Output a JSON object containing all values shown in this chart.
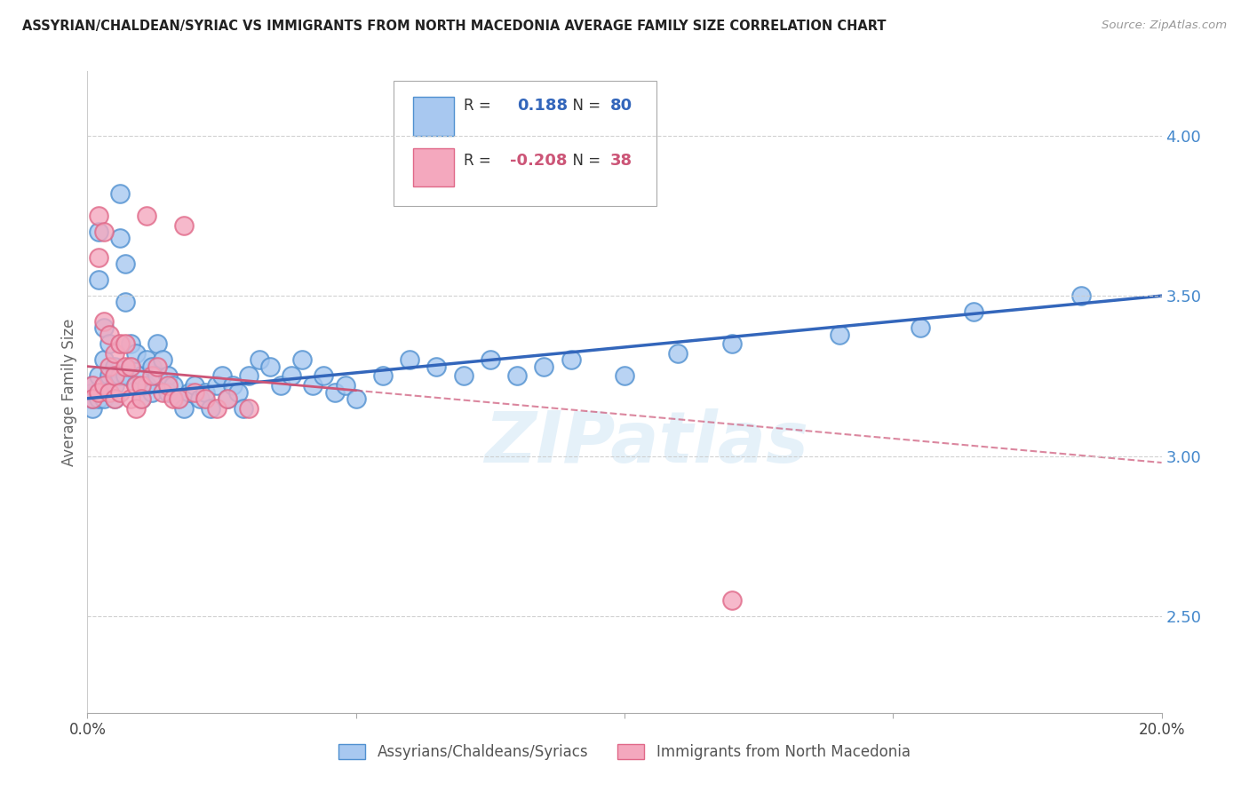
{
  "title": "ASSYRIAN/CHALDEAN/SYRIAC VS IMMIGRANTS FROM NORTH MACEDONIA AVERAGE FAMILY SIZE CORRELATION CHART",
  "source": "Source: ZipAtlas.com",
  "ylabel": "Average Family Size",
  "right_yticks": [
    2.5,
    3.0,
    3.5,
    4.0
  ],
  "xlim": [
    0.0,
    0.2
  ],
  "ylim": [
    2.2,
    4.2
  ],
  "series1_label": "Assyrians/Chaldeans/Syriacs",
  "series2_label": "Immigrants from North Macedonia",
  "series1_R": "0.188",
  "series1_N": "80",
  "series2_R": "-0.208",
  "series2_N": "38",
  "series1_color": "#a8c8f0",
  "series2_color": "#f4a8be",
  "series1_edge_color": "#5090d0",
  "series2_edge_color": "#e06888",
  "series1_line_color": "#3366bb",
  "series2_line_color": "#cc5577",
  "grid_color": "#cccccc",
  "background_color": "#ffffff",
  "watermark": "ZIPatlas",
  "series1_x": [
    0.001,
    0.001,
    0.001,
    0.001,
    0.002,
    0.002,
    0.002,
    0.002,
    0.002,
    0.003,
    0.003,
    0.003,
    0.003,
    0.004,
    0.004,
    0.004,
    0.005,
    0.005,
    0.005,
    0.006,
    0.006,
    0.006,
    0.007,
    0.007,
    0.007,
    0.008,
    0.008,
    0.009,
    0.009,
    0.01,
    0.01,
    0.011,
    0.011,
    0.012,
    0.012,
    0.013,
    0.013,
    0.014,
    0.015,
    0.015,
    0.016,
    0.017,
    0.018,
    0.019,
    0.02,
    0.021,
    0.022,
    0.023,
    0.024,
    0.025,
    0.026,
    0.027,
    0.028,
    0.029,
    0.03,
    0.032,
    0.034,
    0.036,
    0.038,
    0.04,
    0.042,
    0.044,
    0.046,
    0.048,
    0.05,
    0.055,
    0.06,
    0.065,
    0.07,
    0.075,
    0.08,
    0.085,
    0.09,
    0.1,
    0.11,
    0.12,
    0.14,
    0.155,
    0.165,
    0.185
  ],
  "series1_y": [
    3.2,
    3.15,
    3.22,
    3.18,
    3.7,
    3.55,
    3.25,
    3.2,
    3.18,
    3.4,
    3.3,
    3.22,
    3.18,
    3.35,
    3.25,
    3.2,
    3.28,
    3.22,
    3.18,
    3.82,
    3.68,
    3.25,
    3.6,
    3.48,
    3.25,
    3.35,
    3.28,
    3.32,
    3.22,
    3.25,
    3.18,
    3.3,
    3.22,
    3.28,
    3.2,
    3.35,
    3.25,
    3.3,
    3.25,
    3.2,
    3.22,
    3.18,
    3.15,
    3.2,
    3.22,
    3.18,
    3.2,
    3.15,
    3.22,
    3.25,
    3.18,
    3.22,
    3.2,
    3.15,
    3.25,
    3.3,
    3.28,
    3.22,
    3.25,
    3.3,
    3.22,
    3.25,
    3.2,
    3.22,
    3.18,
    3.25,
    3.3,
    3.28,
    3.25,
    3.3,
    3.25,
    3.28,
    3.3,
    3.25,
    3.32,
    3.35,
    3.38,
    3.4,
    3.45,
    3.5
  ],
  "series2_x": [
    0.001,
    0.001,
    0.002,
    0.002,
    0.002,
    0.003,
    0.003,
    0.003,
    0.004,
    0.004,
    0.004,
    0.005,
    0.005,
    0.005,
    0.006,
    0.006,
    0.007,
    0.007,
    0.008,
    0.008,
    0.009,
    0.009,
    0.01,
    0.01,
    0.011,
    0.012,
    0.013,
    0.014,
    0.015,
    0.016,
    0.017,
    0.018,
    0.02,
    0.022,
    0.024,
    0.026,
    0.03,
    0.12
  ],
  "series2_y": [
    3.22,
    3.18,
    3.75,
    3.62,
    3.2,
    3.7,
    3.42,
    3.22,
    3.38,
    3.28,
    3.2,
    3.32,
    3.25,
    3.18,
    3.35,
    3.2,
    3.35,
    3.28,
    3.28,
    3.18,
    3.22,
    3.15,
    3.22,
    3.18,
    3.75,
    3.25,
    3.28,
    3.2,
    3.22,
    3.18,
    3.18,
    3.72,
    3.2,
    3.18,
    3.15,
    3.18,
    3.15,
    2.55
  ],
  "line1_x0": 0.0,
  "line1_y0": 3.18,
  "line1_x1": 0.2,
  "line1_y1": 3.5,
  "line2_x0": 0.0,
  "line2_y0": 3.28,
  "line2_x1": 0.2,
  "line2_y1": 2.98
}
